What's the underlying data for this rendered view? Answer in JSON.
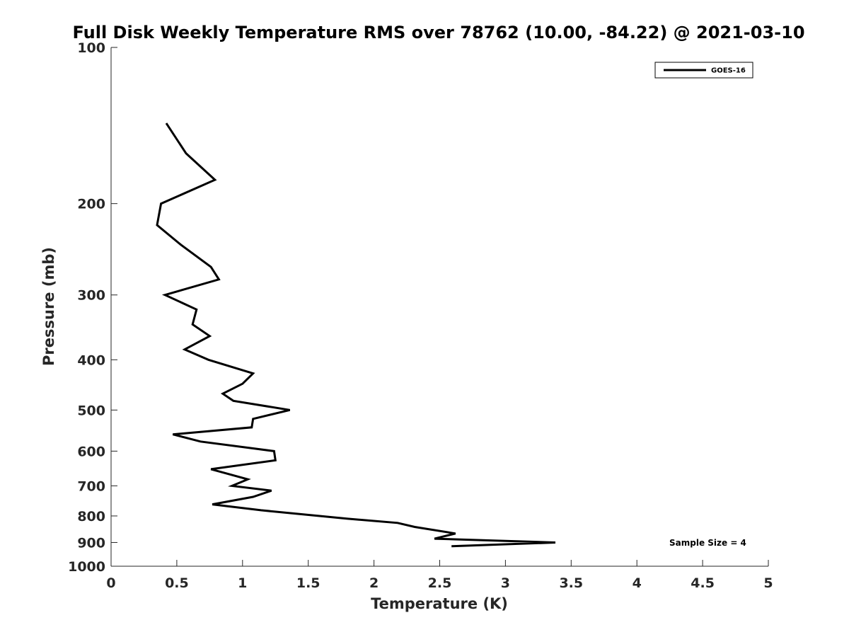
{
  "chart_data": {
    "type": "line",
    "title": "Full Disk Weekly Temperature RMS over 78762 (10.00, -84.22) @ 2021-03-10",
    "xlabel": "Temperature (K)",
    "ylabel": "Pressure (mb)",
    "xlim": [
      0,
      5
    ],
    "ylim": [
      100,
      1000
    ],
    "y_scale": "log",
    "y_reversed": true,
    "grid": false,
    "legend_position": "top-right",
    "x_ticks": [
      "0",
      "0.5",
      "1",
      "1.5",
      "2",
      "2.5",
      "3",
      "3.5",
      "4",
      "4.5",
      "5"
    ],
    "x_tick_values": [
      0,
      0.5,
      1,
      1.5,
      2,
      2.5,
      3,
      3.5,
      4,
      4.5,
      5
    ],
    "y_ticks": [
      "100",
      "200",
      "300",
      "400",
      "500",
      "600",
      "700",
      "800",
      "900",
      "1000"
    ],
    "y_tick_values": [
      100,
      200,
      300,
      400,
      500,
      600,
      700,
      800,
      900,
      1000
    ],
    "series": [
      {
        "name": "GOES-16",
        "color": "#000000",
        "points": [
          [
            0.42,
            140
          ],
          [
            0.57,
            160
          ],
          [
            0.79,
            180
          ],
          [
            0.38,
            200
          ],
          [
            0.35,
            220
          ],
          [
            0.53,
            240
          ],
          [
            0.76,
            265
          ],
          [
            0.82,
            280
          ],
          [
            0.41,
            300
          ],
          [
            0.65,
            320
          ],
          [
            0.62,
            342
          ],
          [
            0.75,
            360
          ],
          [
            0.56,
            382
          ],
          [
            0.74,
            400
          ],
          [
            1.08,
            425
          ],
          [
            1.0,
            445
          ],
          [
            0.85,
            465
          ],
          [
            0.93,
            480
          ],
          [
            1.36,
            500
          ],
          [
            1.08,
            520
          ],
          [
            1.07,
            540
          ],
          [
            0.47,
            557
          ],
          [
            0.68,
            575
          ],
          [
            1.24,
            600
          ],
          [
            1.25,
            625
          ],
          [
            0.76,
            650
          ],
          [
            1.04,
            680
          ],
          [
            0.92,
            700
          ],
          [
            1.22,
            715
          ],
          [
            1.08,
            735
          ],
          [
            0.77,
            760
          ],
          [
            1.14,
            780
          ],
          [
            1.8,
            810
          ],
          [
            2.18,
            825
          ],
          [
            2.31,
            840
          ],
          [
            2.62,
            865
          ],
          [
            2.46,
            885
          ],
          [
            3.38,
            900
          ],
          [
            2.59,
            915
          ]
        ]
      }
    ],
    "annotations": [
      "Sample Size = 4"
    ]
  }
}
